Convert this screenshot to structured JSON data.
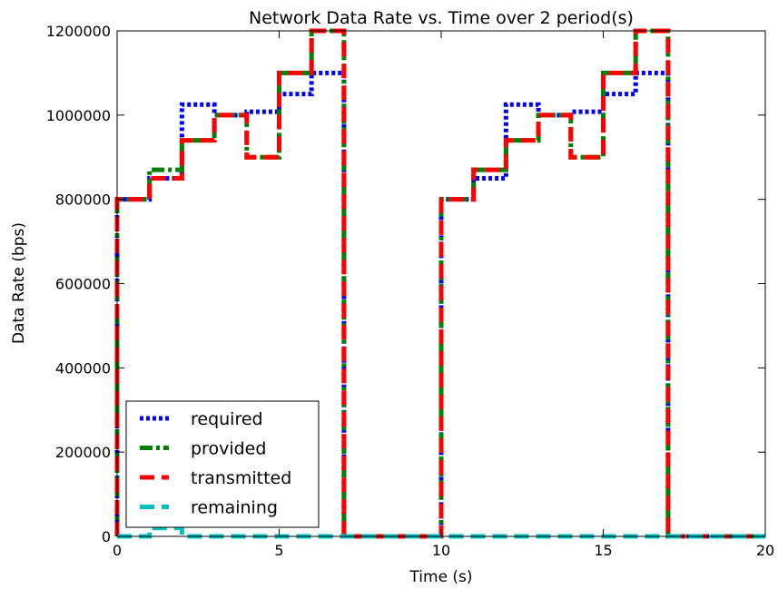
{
  "chart_data": {
    "type": "line",
    "title": "Network Data Rate vs. Time over 2 period(s)",
    "xlabel": "Time (s)",
    "ylabel": "Data Rate (bps)",
    "xlim": [
      0,
      20
    ],
    "ylim": [
      0,
      1200000
    ],
    "x_ticks": [
      0,
      5,
      10,
      15,
      20
    ],
    "x_tick_labels": [
      "0",
      "5",
      "10",
      "15",
      "20"
    ],
    "y_ticks": [
      0,
      200000,
      400000,
      600000,
      800000,
      1000000,
      1200000
    ],
    "y_tick_labels": [
      "0",
      "200000",
      "400000",
      "600000",
      "800000",
      "1000000",
      "1200000"
    ],
    "grid": false,
    "legend_position": "lower-left",
    "series": [
      {
        "name": "required",
        "color": "#0000ff",
        "style": "dotted",
        "x": [
          0,
          0,
          1,
          1,
          2,
          2,
          3,
          3,
          4,
          4,
          5,
          5,
          6,
          6,
          7,
          7,
          10,
          10,
          11,
          11,
          12,
          12,
          13,
          13,
          14,
          14,
          15,
          15,
          16,
          16,
          17,
          17,
          20
        ],
        "y": [
          0,
          800000,
          800000,
          850000,
          850000,
          1025000,
          1025000,
          1000000,
          1000000,
          1008000,
          1008000,
          1050000,
          1050000,
          1100000,
          1100000,
          0,
          0,
          800000,
          800000,
          850000,
          850000,
          1025000,
          1025000,
          1000000,
          1000000,
          1008000,
          1008000,
          1050000,
          1050000,
          1100000,
          1100000,
          0,
          0
        ]
      },
      {
        "name": "provided",
        "color": "#008000",
        "style": "dashdot",
        "x": [
          0,
          0,
          1,
          1,
          2,
          2,
          3,
          3,
          4,
          4,
          5,
          5,
          6,
          6,
          7,
          7,
          10,
          10,
          11,
          11,
          12,
          12,
          13,
          13,
          14,
          14,
          15,
          15,
          16,
          16,
          17,
          17,
          20
        ],
        "y": [
          0,
          800000,
          800000,
          870000,
          870000,
          940000,
          940000,
          1000000,
          1000000,
          900000,
          900000,
          1100000,
          1100000,
          1200000,
          1200000,
          0,
          0,
          800000,
          800000,
          870000,
          870000,
          940000,
          940000,
          1000000,
          1000000,
          900000,
          900000,
          1100000,
          1100000,
          1200000,
          1200000,
          0,
          0
        ]
      },
      {
        "name": "transmitted",
        "color": "#ff0000",
        "style": "dashed",
        "x": [
          0,
          0,
          1,
          1,
          2,
          2,
          3,
          3,
          4,
          4,
          5,
          5,
          6,
          6,
          7,
          7,
          10,
          10,
          11,
          11,
          12,
          12,
          13,
          13,
          14,
          14,
          15,
          15,
          16,
          16,
          17,
          17,
          20
        ],
        "y": [
          0,
          800000,
          800000,
          850000,
          850000,
          940000,
          940000,
          1000000,
          1000000,
          900000,
          900000,
          1100000,
          1100000,
          1200000,
          1200000,
          0,
          0,
          800000,
          800000,
          870000,
          870000,
          940000,
          940000,
          1000000,
          1000000,
          900000,
          900000,
          1100000,
          1100000,
          1200000,
          1200000,
          0,
          0
        ]
      },
      {
        "name": "remaining",
        "color": "#00bfbf",
        "style": "dashed",
        "x": [
          0,
          1,
          1,
          2,
          2,
          20
        ],
        "y": [
          0,
          0,
          20000,
          20000,
          0,
          0
        ]
      }
    ]
  }
}
